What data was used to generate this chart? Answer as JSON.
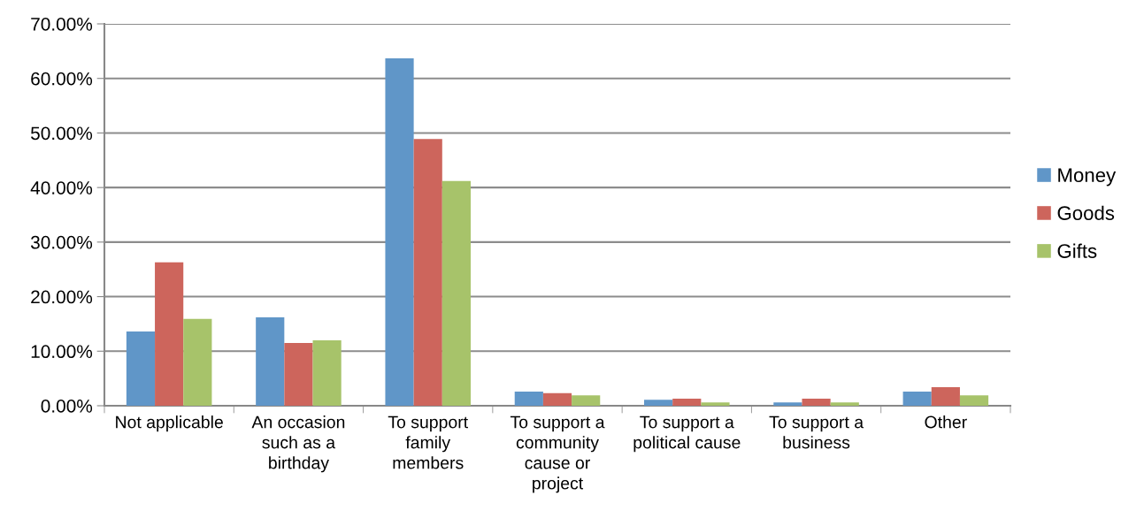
{
  "chart_data": {
    "type": "bar",
    "categories": [
      "Not applicable",
      "An occasion\nsuch as a\nbirthday",
      "To support\nfamily\nmembers",
      "To support a\ncommunity\ncause or\nproject",
      "To support a\npolitical cause",
      "To support a\nbusiness",
      "Other"
    ],
    "series": [
      {
        "name": "Money",
        "color": "#6096c8",
        "values": [
          13.6,
          16.2,
          63.7,
          2.6,
          1.1,
          0.6,
          2.6
        ]
      },
      {
        "name": "Goods",
        "color": "#cd655c",
        "values": [
          26.3,
          11.5,
          48.9,
          2.3,
          1.3,
          1.3,
          3.4
        ]
      },
      {
        "name": "Gifts",
        "color": "#a7c36a",
        "values": [
          15.9,
          12.0,
          41.2,
          1.9,
          0.6,
          0.6,
          1.9
        ]
      }
    ],
    "ylim": [
      0,
      70
    ],
    "yticks": [
      {
        "value": 0,
        "label": "0.00%"
      },
      {
        "value": 10,
        "label": "10.00%"
      },
      {
        "value": 20,
        "label": "20.00%"
      },
      {
        "value": 30,
        "label": "30.00%"
      },
      {
        "value": 40,
        "label": "40.00%"
      },
      {
        "value": 50,
        "label": "50.00%"
      },
      {
        "value": 60,
        "label": "60.00%"
      },
      {
        "value": 70,
        "label": "70.00%"
      }
    ],
    "grid": "y",
    "legend": "right"
  }
}
